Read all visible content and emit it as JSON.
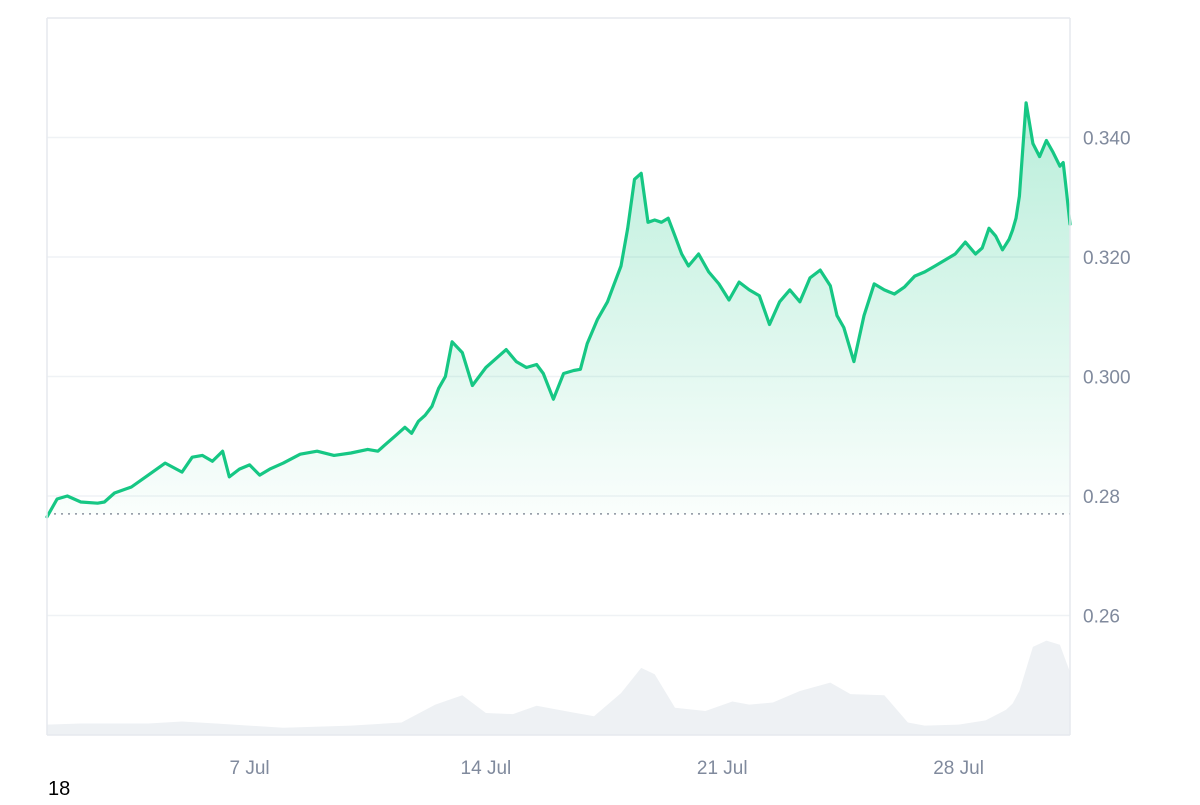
{
  "corner_label": "18",
  "colors": {
    "line": "#16c784",
    "area_top": "#16c784",
    "volume": "#eef1f4",
    "grid": "#eff2f5",
    "axis_text": "#808a9d",
    "baseline": "#8a929f"
  },
  "chart_data": {
    "type": "area",
    "xlabel": "",
    "ylabel": "",
    "x_ticks": [
      "7 Jul",
      "14 Jul",
      "21 Jul",
      "28 Jul"
    ],
    "y_ticks": [
      "0.340",
      "0.320",
      "0.300",
      "0.28",
      "0.26"
    ],
    "ylim": [
      0.24,
      0.36
    ],
    "x_range_days": [
      1.0,
      31.3
    ],
    "baseline_value": 0.277,
    "price_series": {
      "x": [
        1.0,
        1.3,
        1.6,
        2.0,
        2.5,
        2.7,
        3.0,
        3.5,
        4.0,
        4.5,
        5.0,
        5.3,
        5.6,
        5.9,
        6.2,
        6.4,
        6.7,
        7.0,
        7.3,
        7.6,
        8.0,
        8.5,
        9.0,
        9.5,
        10.0,
        10.5,
        10.8,
        11.0,
        11.3,
        11.6,
        11.8,
        12.0,
        12.2,
        12.4,
        12.6,
        12.8,
        13.0,
        13.3,
        13.6,
        14.0,
        14.3,
        14.6,
        14.9,
        15.2,
        15.5,
        15.7,
        16.0,
        16.3,
        16.6,
        16.8,
        17.0,
        17.3,
        17.6,
        17.8,
        18.0,
        18.2,
        18.4,
        18.6,
        18.8,
        19.0,
        19.2,
        19.4,
        19.6,
        19.8,
        20.0,
        20.3,
        20.6,
        20.9,
        21.2,
        21.5,
        21.8,
        22.1,
        22.4,
        22.7,
        23.0,
        23.3,
        23.6,
        23.9,
        24.2,
        24.4,
        24.6,
        24.9,
        25.2,
        25.5,
        25.8,
        26.1,
        26.4,
        26.7,
        27.0,
        27.3,
        27.6,
        27.9,
        28.2,
        28.5,
        28.7,
        28.9,
        29.1,
        29.3,
        29.5,
        29.6,
        29.7,
        29.8,
        30.0,
        30.2,
        30.4,
        30.6,
        30.8,
        31.0,
        31.1,
        31.2,
        31.3
      ],
      "y": [
        0.2765,
        0.2795,
        0.28,
        0.279,
        0.2788,
        0.279,
        0.2805,
        0.2815,
        0.2835,
        0.2855,
        0.284,
        0.2865,
        0.2868,
        0.2858,
        0.2875,
        0.2832,
        0.2845,
        0.2852,
        0.2835,
        0.2845,
        0.2855,
        0.287,
        0.2875,
        0.2868,
        0.2872,
        0.2878,
        0.2875,
        0.2885,
        0.29,
        0.2915,
        0.2905,
        0.2925,
        0.2935,
        0.295,
        0.298,
        0.3,
        0.3058,
        0.304,
        0.2985,
        0.3015,
        0.303,
        0.3045,
        0.3025,
        0.3015,
        0.302,
        0.3005,
        0.2962,
        0.3005,
        0.301,
        0.3012,
        0.3055,
        0.3095,
        0.3125,
        0.3155,
        0.3185,
        0.3248,
        0.333,
        0.334,
        0.3258,
        0.3262,
        0.3258,
        0.3265,
        0.3235,
        0.3205,
        0.3185,
        0.3205,
        0.3175,
        0.3155,
        0.3128,
        0.3158,
        0.3145,
        0.3135,
        0.3087,
        0.3125,
        0.3145,
        0.3125,
        0.3165,
        0.3178,
        0.3152,
        0.3102,
        0.3082,
        0.3025,
        0.3102,
        0.3155,
        0.3145,
        0.3138,
        0.315,
        0.3168,
        0.3175,
        0.3185,
        0.3195,
        0.3205,
        0.3225,
        0.3205,
        0.3215,
        0.3248,
        0.3235,
        0.3212,
        0.323,
        0.3245,
        0.3265,
        0.3302,
        0.3458,
        0.339,
        0.3368,
        0.3395,
        0.3375,
        0.3352,
        0.3358,
        0.3308,
        0.3255
      ]
    },
    "volume_series": {
      "x": [
        1.0,
        2.0,
        4.0,
        5.0,
        6.0,
        8.0,
        10.0,
        11.5,
        12.5,
        13.3,
        14.0,
        14.8,
        15.5,
        16.5,
        17.2,
        18.0,
        18.6,
        19.0,
        19.6,
        20.5,
        21.3,
        21.8,
        22.5,
        23.3,
        24.2,
        24.8,
        25.8,
        26.5,
        27.0,
        28.0,
        28.8,
        29.4,
        29.6,
        29.8,
        30.2,
        30.6,
        31.0,
        31.3
      ],
      "y": [
        8,
        9,
        9,
        11,
        9,
        5,
        7,
        10,
        27,
        36,
        19,
        18,
        26,
        20,
        16,
        38,
        62,
        56,
        24,
        21,
        30,
        27,
        29,
        40,
        48,
        37,
        36,
        10,
        7,
        8,
        12,
        22,
        28,
        40,
        82,
        88,
        84,
        58
      ]
    }
  }
}
